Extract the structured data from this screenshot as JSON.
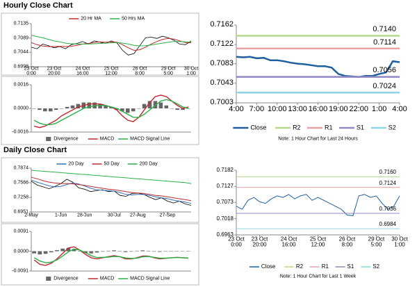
{
  "sections": [
    {
      "title": "Hourly Close Chart"
    },
    {
      "title": "Daily Close Chart"
    }
  ],
  "chart_data": [
    {
      "type": "line",
      "legend": "top",
      "ylim": [
        0.6998,
        0.7135
      ],
      "yticks": [
        0.6998,
        0.7044,
        0.7089,
        0.7135
      ],
      "categories": [
        "23 Oct\n0:00",
        null,
        null,
        null,
        "23 Oct\n20:00",
        null,
        null,
        null,
        null,
        "24 Oct\n16:00",
        null,
        null,
        null,
        null,
        "25 Oct\n12:00",
        null,
        null,
        null,
        null,
        "26 Oct\n8:00",
        null,
        null,
        null,
        null,
        "29 Oct\n5:00",
        null,
        null,
        null,
        "30 Oct\n1:00"
      ],
      "series": [
        {
          "color": "#000000",
          "values": [
            0.706,
            0.7055,
            0.707,
            0.7065,
            0.7058,
            0.7062,
            0.7055,
            0.7068,
            0.7072,
            0.7078,
            0.707,
            0.708,
            0.7076,
            0.7072,
            0.708,
            0.7074,
            0.705,
            0.7035,
            0.704,
            0.7065,
            0.709,
            0.7092,
            0.7088,
            0.7095,
            0.709,
            0.7082,
            0.707,
            0.7068,
            0.708
          ]
        },
        {
          "name": "20 Hr MA",
          "color": "#c0282d",
          "values": [
            0.7075,
            0.7068,
            0.7064,
            0.7062,
            0.7062,
            0.7063,
            0.7062,
            0.7063,
            0.7066,
            0.707,
            0.7072,
            0.7075,
            0.7077,
            0.7076,
            0.7077,
            0.7076,
            0.7068,
            0.7058,
            0.705,
            0.7052,
            0.706,
            0.707,
            0.7078,
            0.7085,
            0.7088,
            0.7086,
            0.708,
            0.7075,
            0.7074
          ]
        },
        {
          "name": "50 Hrs MA",
          "color": "#2bb04a",
          "values": [
            0.7098,
            0.7094,
            0.709,
            0.7085,
            0.708,
            0.7077,
            0.7073,
            0.7071,
            0.707,
            0.707,
            0.707,
            0.7071,
            0.7072,
            0.7073,
            0.7074,
            0.7075,
            0.7073,
            0.707,
            0.7066,
            0.7064,
            0.7065,
            0.7067,
            0.707,
            0.7073,
            0.7076,
            0.7078,
            0.7078,
            0.7077,
            0.7076
          ]
        }
      ]
    },
    {
      "type": "combo",
      "legend": "bottom",
      "ylim": [
        -0.0016,
        0.0016
      ],
      "yticks": [
        {
          "value": -0.0016,
          "label": "-0.0016"
        },
        {
          "value": 0,
          "label": "0.0000"
        },
        {
          "value": 0.0016,
          "label": "0.0016"
        }
      ],
      "series": [
        {
          "name": "Divergence",
          "kind": "bar",
          "color": "#666666",
          "values": [
            0,
            -0.0001,
            -0.0002,
            -0.0002,
            -0.0001,
            0,
            0.0001,
            0.0002,
            0.0003,
            0.0004,
            0.0004,
            0.0004,
            0.0003,
            0.0002,
            0.0001,
            -0.0001,
            -0.0002,
            -0.0003,
            -0.0002,
            0,
            0.0003,
            0.0005,
            0.0005,
            0.0004,
            0.0002,
            0,
            -0.0001,
            -0.0001,
            0
          ]
        },
        {
          "name": "MACD",
          "kind": "line",
          "color": "#c0282d",
          "values": [
            -0.0012,
            -0.0013,
            -0.0012,
            -0.001,
            -0.0008,
            -0.0005,
            -0.0003,
            -0.0001,
            0.0001,
            0.0002,
            0.0003,
            0.0003,
            0.0003,
            0.0002,
            0.0001,
            -0.0001,
            -0.0005,
            -0.0008,
            -0.0009,
            -0.0006,
            -0.0001,
            0.0004,
            0.0008,
            0.0009,
            0.0008,
            0.0005,
            0.0002,
            0,
            0.0001
          ]
        },
        {
          "name": "MACD Signal Line",
          "kind": "line",
          "color": "#2bb04a",
          "values": [
            -0.0008,
            -0.001,
            -0.0011,
            -0.0011,
            -0.001,
            -0.0008,
            -0.0006,
            -0.0004,
            -0.0002,
            0,
            0.0001,
            0.0002,
            0.0002,
            0.0002,
            0.0001,
            0,
            -0.0002,
            -0.0004,
            -0.0006,
            -0.0006,
            -0.0004,
            -0.0001,
            0.0002,
            0.0005,
            0.0006,
            0.0005,
            0.0003,
            0.0001,
            0
          ]
        }
      ]
    },
    {
      "type": "line",
      "legend": "bottom",
      "ylim": [
        0.7003,
        0.7162
      ],
      "yticks": [
        0.7003,
        0.7043,
        0.7083,
        0.7122,
        0.7162
      ],
      "categories": [
        "4:00",
        null,
        null,
        "7:00",
        null,
        null,
        "10:00",
        null,
        null,
        "13:00",
        null,
        null,
        "16:00",
        null,
        null,
        "19:00",
        null,
        null,
        "22:00",
        null,
        null,
        "1:00",
        null,
        null,
        "4:00"
      ],
      "series": [
        {
          "name": "Close",
          "color": "#1f5f9f",
          "values": [
            0.7097,
            0.7096,
            0.7097,
            0.7094,
            0.7095,
            0.709,
            0.709,
            0.7088,
            0.7085,
            0.7083,
            0.7082,
            0.708,
            0.7078,
            0.7078,
            0.7075,
            0.7062,
            0.7058,
            0.7057,
            0.7056,
            0.7058,
            0.7058,
            0.7062,
            0.7065,
            0.7088,
            0.7086
          ]
        },
        {
          "name": "R2",
          "color": "#b5d88f",
          "value": 0.714,
          "value_label": "0.7140"
        },
        {
          "name": "R1",
          "color": "#e8a3a3",
          "value": 0.7114,
          "value_label": "0.7114"
        },
        {
          "name": "S1",
          "color": "#9187c2",
          "value": 0.7056,
          "value_label": "0.7056"
        },
        {
          "name": "S2",
          "color": "#8ed3e6",
          "value": 0.7024,
          "value_label": "0.7024"
        }
      ],
      "note": "Note: 1 Hour Chart for Last 24 Hours"
    },
    {
      "type": "line",
      "legend": "top",
      "ylim": [
        0.6951,
        0.7874
      ],
      "yticks": [
        0.6951,
        0.7258,
        0.7566,
        0.7874
      ],
      "categories": [
        "2-May",
        null,
        null,
        null,
        null,
        "1-Jun",
        null,
        null,
        null,
        "28-Jun",
        null,
        null,
        null,
        null,
        "30-Jul",
        null,
        null,
        null,
        "27-Aug",
        null,
        null,
        null,
        null,
        "27-Sep",
        null,
        null,
        null,
        null
      ],
      "series": [
        {
          "color": "#000000",
          "values": [
            0.76,
            0.752,
            0.748,
            0.744,
            0.749,
            0.755,
            0.764,
            0.758,
            0.746,
            0.743,
            0.738,
            0.74,
            0.742,
            0.738,
            0.739,
            0.73,
            0.728,
            0.734,
            0.735,
            0.732,
            0.726,
            0.721,
            0.725,
            0.718,
            0.714,
            0.718,
            0.712,
            0.709
          ]
        },
        {
          "name": "20 Day",
          "color": "#2f6fb8",
          "values": [
            0.762,
            0.758,
            0.754,
            0.75,
            0.748,
            0.749,
            0.753,
            0.756,
            0.754,
            0.75,
            0.745,
            0.742,
            0.741,
            0.74,
            0.739,
            0.736,
            0.732,
            0.731,
            0.732,
            0.732,
            0.73,
            0.727,
            0.725,
            0.723,
            0.72,
            0.718,
            0.716,
            0.713
          ]
        },
        {
          "name": "50 Day",
          "color": "#c0282d",
          "values": [
            0.768,
            0.765,
            0.761,
            0.758,
            0.756,
            0.755,
            0.755,
            0.7545,
            0.753,
            0.751,
            0.749,
            0.747,
            0.745,
            0.743,
            0.742,
            0.74,
            0.738,
            0.736,
            0.735,
            0.734,
            0.732,
            0.73,
            0.729,
            0.727,
            0.725,
            0.723,
            0.721,
            0.719
          ]
        },
        {
          "name": "200 Day",
          "color": "#2bb04a",
          "values": [
            0.783,
            0.782,
            0.781,
            0.78,
            0.779,
            0.778,
            0.777,
            0.776,
            0.775,
            0.774,
            0.773,
            0.772,
            0.771,
            0.77,
            0.769,
            0.768,
            0.767,
            0.766,
            0.765,
            0.764,
            0.763,
            0.762,
            0.761,
            0.76,
            0.759,
            0.758,
            0.757,
            0.755
          ]
        }
      ]
    },
    {
      "type": "combo",
      "legend": "bottom",
      "ylim": [
        -0.0091,
        0.0091
      ],
      "yticks": [
        {
          "value": -0.0091,
          "label": "-0.0091"
        },
        {
          "value": 0,
          "label": "0.0000"
        },
        {
          "value": 0.0091,
          "label": "0.0091"
        }
      ],
      "series": [
        {
          "name": "Divergence",
          "kind": "bar",
          "color": "#666666",
          "values": [
            -0.001,
            -0.0015,
            -0.0012,
            -0.0005,
            0.0005,
            0.0012,
            0.0015,
            0.001,
            0,
            -0.0008,
            -0.001,
            -0.0006,
            -0.0002,
            0.0002,
            0.0004,
            0,
            -0.0004,
            -0.0002,
            0.0002,
            0.0004,
            0.0002,
            -0.0002,
            -0.0003,
            -0.0001,
            0,
            0.0001,
            0,
            -0.0001
          ]
        },
        {
          "name": "MACD",
          "kind": "line",
          "color": "#c0282d",
          "values": [
            -0.004,
            -0.006,
            -0.0065,
            -0.0055,
            -0.0035,
            -0.001,
            0.0015,
            0.002,
            0.0005,
            -0.0015,
            -0.003,
            -0.0035,
            -0.003,
            -0.0025,
            -0.002,
            -0.0025,
            -0.0035,
            -0.0035,
            -0.003,
            -0.0022,
            -0.0022,
            -0.003,
            -0.0035,
            -0.0033,
            -0.003,
            -0.0028,
            -0.003,
            -0.0032
          ]
        },
        {
          "name": "MACD Signal Line",
          "kind": "line",
          "color": "#2bb04a",
          "values": [
            -0.003,
            -0.0045,
            -0.0053,
            -0.005,
            -0.004,
            -0.0022,
            -0.0003,
            0.001,
            0.0005,
            -0.0007,
            -0.002,
            -0.0029,
            -0.0028,
            -0.0027,
            -0.0024,
            -0.0025,
            -0.0031,
            -0.0033,
            -0.0032,
            -0.0026,
            -0.0024,
            -0.0028,
            -0.0032,
            -0.0032,
            -0.003,
            -0.0029,
            -0.003,
            -0.0031
          ]
        }
      ]
    },
    {
      "type": "line",
      "legend": "bottom",
      "ylim": [
        0.6963,
        0.7182
      ],
      "yticks": [
        0.6963,
        0.7018,
        0.7073,
        0.7127,
        0.7182
      ],
      "categories": [
        "23 Oct\n0:00",
        null,
        null,
        null,
        "23 Oct\n20:00",
        null,
        null,
        null,
        null,
        "24 Oct\n16:00",
        null,
        null,
        null,
        null,
        "25 Oct\n12:00",
        null,
        null,
        null,
        null,
        "26 Oct\n8:00",
        null,
        null,
        null,
        null,
        "29 Oct\n5:00",
        null,
        null,
        null,
        "30 Oct\n1:00"
      ],
      "series": [
        {
          "name": "Close",
          "color": "#1f5f9f",
          "values": [
            0.706,
            0.705,
            0.708,
            0.709,
            0.7075,
            0.707,
            0.7085,
            0.7095,
            0.709,
            0.71,
            0.7085,
            0.7095,
            0.71,
            0.708,
            0.709,
            0.708,
            0.707,
            0.706,
            0.705,
            0.703,
            0.7028,
            0.7095,
            0.71,
            0.709,
            0.7095,
            0.707,
            0.705,
            0.706,
            0.7095
          ]
        },
        {
          "name": "R2",
          "color": "#b5d88f",
          "value": 0.716,
          "value_label": "0.7160"
        },
        {
          "name": "R1",
          "color": "#e8a3a3",
          "value": 0.7124,
          "value_label": "0.7124"
        },
        {
          "name": "S1",
          "color": "#9187c2",
          "value": 0.7036,
          "value_label": "0.7036"
        },
        {
          "name": "S2",
          "color": "#8ed3e6",
          "value": 0.6984,
          "value_label": "0.6984"
        }
      ],
      "note": "Note: 1 Hour Chart for Last 1 Week"
    }
  ]
}
